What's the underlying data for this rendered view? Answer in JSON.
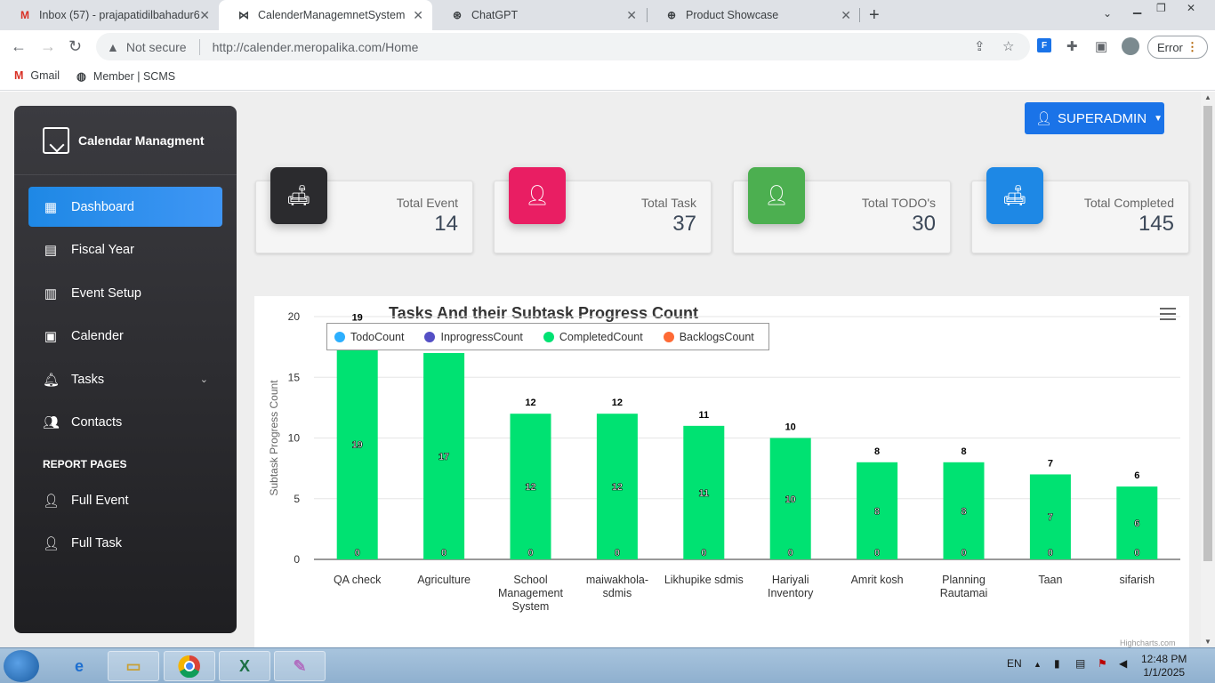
{
  "browser": {
    "tabs": [
      {
        "title": "Inbox (57) - prajapatidilbahadur6",
        "favicon": "M"
      },
      {
        "title": "CalenderManagemnetSystem",
        "favicon": "⋈"
      },
      {
        "title": "ChatGPT",
        "favicon": "⊛"
      },
      {
        "title": "Product Showcase",
        "favicon": "⊕"
      }
    ],
    "new_tab": "+",
    "not_secure": "Not secure",
    "url": "http://calender.meropalika.com/Home",
    "error_label": "Error",
    "bookmarks": [
      {
        "label": "Gmail"
      },
      {
        "label": "Member | SCMS"
      }
    ]
  },
  "sidebar": {
    "brand": "Calendar Managment",
    "items": [
      {
        "label": "Dashboard",
        "icon": "dashboard-icon"
      },
      {
        "label": "Fiscal Year",
        "icon": "calculator-icon"
      },
      {
        "label": "Event Setup",
        "icon": "book-icon"
      },
      {
        "label": "Calender",
        "icon": "calendar-icon"
      },
      {
        "label": "Tasks",
        "icon": "bell-icon"
      },
      {
        "label": "Contacts",
        "icon": "users-icon"
      }
    ],
    "report_heading": "REPORT PAGES",
    "report_items": [
      {
        "label": "Full Event",
        "icon": "user-icon"
      },
      {
        "label": "Full Task",
        "icon": "user-icon"
      }
    ]
  },
  "header": {
    "user_button": "SUPERADMIN"
  },
  "stats": [
    {
      "label": "Total Event",
      "value": "14",
      "color": "#2b2b2e"
    },
    {
      "label": "Total Task",
      "value": "37",
      "color": "#e91e63"
    },
    {
      "label": "Total TODO's",
      "value": "30",
      "color": "#4caf50"
    },
    {
      "label": "Total Completed",
      "value": "145",
      "color": "#1e88e5"
    }
  ],
  "chart_data": {
    "type": "bar",
    "title": "Tasks And their Subtask Progress Count",
    "ylabel": "Subtask Progress Count",
    "xlabel": "",
    "ylim": [
      0,
      20
    ],
    "yticks": [
      "0",
      "5",
      "10",
      "15",
      "20"
    ],
    "categories": [
      "QA check",
      "Agriculture",
      "School Management System",
      "maiwakhola-sdmis",
      "Likhupike sdmis",
      "Hariyali Inventory",
      "Amrit kosh",
      "Planning Rautamai",
      "Taan",
      "sifarish"
    ],
    "series": [
      {
        "name": "TodoCount",
        "color": "#2caffe",
        "values": [
          0,
          0,
          0,
          0,
          0,
          0,
          0,
          0,
          0,
          0
        ]
      },
      {
        "name": "InprogressCount",
        "color": "#544fc5",
        "values": [
          0,
          0,
          0,
          0,
          0,
          0,
          0,
          0,
          0,
          0
        ]
      },
      {
        "name": "CompletedCount",
        "color": "#00e272",
        "values": [
          19,
          17,
          12,
          12,
          11,
          10,
          8,
          8,
          7,
          6
        ]
      },
      {
        "name": "BacklogsCount",
        "color": "#fe6a35",
        "values": [
          0,
          0,
          0,
          0,
          0,
          0,
          0,
          0,
          0,
          0
        ]
      }
    ],
    "top_labels": [
      "19",
      "17",
      "12",
      "12",
      "11",
      "10",
      "8",
      "8",
      "7",
      "6"
    ],
    "credits": "Highcharts.com",
    "legend": "top-left",
    "grid": true
  },
  "taskbar": {
    "lang": "EN",
    "time": "12:48 PM",
    "date": "1/1/2025"
  }
}
